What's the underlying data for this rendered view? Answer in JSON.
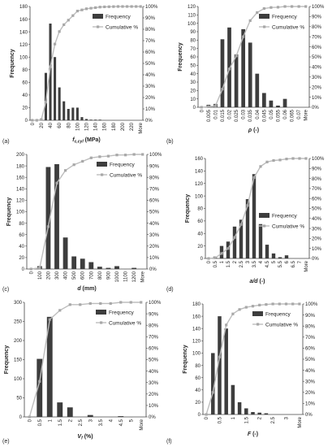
{
  "colors": {
    "bar": "#3d3d3d",
    "line": "#bdbdbd",
    "marker": "#a8a8a8",
    "axis": "#444444"
  },
  "chart_data": [
    {
      "type": "bar",
      "panel": "(a)",
      "xlabel": "f",
      "xlabel_sub": "c,cyl",
      "xlabel_unit": " (MPa)",
      "ylabel": "Frequency",
      "ylim": [
        0,
        180
      ],
      "yticks": [
        0,
        20,
        40,
        60,
        80,
        100,
        120,
        140,
        160,
        180
      ],
      "y2lim": [
        0,
        100
      ],
      "y2ticks": [
        "0%",
        "10%",
        "20%",
        "30%",
        "40%",
        "50%",
        "60%",
        "70%",
        "80%",
        "90%",
        "100%"
      ],
      "categories": [
        "0",
        "10",
        "20",
        "30",
        "40",
        "50",
        "60",
        "70",
        "80",
        "90",
        "100",
        "110",
        "120",
        "130",
        "140",
        "150",
        "160",
        "170",
        "180",
        "190",
        "200",
        "210",
        "220",
        "230",
        "More"
      ],
      "tick_labels": [
        "0",
        "20",
        "40",
        "60",
        "80",
        "100",
        "120",
        "140",
        "160",
        "180",
        "200",
        "220",
        "More"
      ],
      "series": [
        {
          "name": "Frequency",
          "values": [
            0,
            0,
            3,
            75,
            153,
            100,
            52,
            30,
            18,
            20,
            20,
            5,
            2,
            1,
            1,
            1,
            0,
            0,
            0,
            0,
            0,
            0,
            0,
            0,
            0
          ]
        },
        {
          "name": "Cumulative %",
          "values": [
            0,
            0,
            0.6,
            16,
            47,
            67,
            78,
            84,
            88,
            92,
            96,
            97,
            98,
            98.5,
            99,
            99.5,
            99.7,
            99.8,
            99.9,
            100,
            100,
            100,
            100,
            100,
            100
          ]
        }
      ],
      "legend": "top-right"
    },
    {
      "type": "bar",
      "panel": "(b)",
      "xlabel": "ρ",
      "xlabel_sub": "",
      "xlabel_unit": " (-)",
      "ylabel": "Frequency",
      "ylim": [
        0,
        120
      ],
      "yticks": [
        0,
        10,
        20,
        30,
        40,
        50,
        60,
        70,
        80,
        90,
        100,
        110,
        120
      ],
      "y2lim": [
        0,
        100
      ],
      "y2ticks": [
        "0%",
        "10%",
        "20%",
        "30%",
        "40%",
        "50%",
        "60%",
        "70%",
        "80%",
        "90%",
        "100%"
      ],
      "categories": [
        "0",
        "0.005",
        "0.01",
        "0.015",
        "0.02",
        "0.025",
        "0.03",
        "0.035",
        "0.04",
        "0.045",
        "0.05",
        "0.055",
        "0.06",
        "0.065",
        "0.07",
        "More"
      ],
      "tick_labels": [
        "0",
        "0.005",
        "0.01",
        "0.015",
        "0.02",
        "0.025",
        "0.03",
        "0.035",
        "0.04",
        "0.045",
        "0.05",
        "0.055",
        "0.06",
        "0.065",
        "0.07",
        "More"
      ],
      "series": [
        {
          "name": "Frequency",
          "values": [
            0,
            3,
            4,
            81,
            95,
            63,
            93,
            77,
            40,
            17,
            8,
            2,
            10,
            0,
            0,
            0
          ]
        },
        {
          "name": "Cumulative %",
          "values": [
            0,
            0.6,
            1.4,
            18,
            38,
            51,
            70,
            86,
            94,
            98,
            99,
            99.3,
            100,
            100,
            100,
            100
          ]
        }
      ],
      "legend": "top-right"
    },
    {
      "type": "bar",
      "panel": "(c)",
      "xlabel": "d",
      "xlabel_sub": "",
      "xlabel_unit": " (mm)",
      "ylabel": "Frequency",
      "ylim": [
        0,
        200
      ],
      "yticks": [
        0,
        20,
        40,
        60,
        80,
        100,
        120,
        140,
        160,
        180,
        200
      ],
      "y2lim": [
        0,
        100
      ],
      "y2ticks": [
        "0%",
        "10%",
        "20%",
        "30%",
        "40%",
        "50%",
        "60%",
        "70%",
        "80%",
        "90%",
        "100%"
      ],
      "categories": [
        "0",
        "100",
        "200",
        "300",
        "400",
        "500",
        "600",
        "700",
        "800",
        "900",
        "1000",
        "1100",
        "1200",
        "More"
      ],
      "tick_labels": [
        "0",
        "100",
        "200",
        "300",
        "400",
        "500",
        "600",
        "700",
        "800",
        "900",
        "1000",
        "1100",
        "1200",
        "More"
      ],
      "series": [
        {
          "name": "Frequency",
          "values": [
            0,
            5,
            178,
            183,
            55,
            22,
            18,
            12,
            4,
            2,
            5,
            0,
            2,
            0
          ]
        },
        {
          "name": "Cumulative %",
          "values": [
            0,
            1,
            37,
            75,
            86,
            91,
            94,
            97,
            98,
            98.5,
            99.5,
            99.5,
            100,
            100
          ]
        }
      ],
      "legend": "top-right"
    },
    {
      "type": "bar",
      "panel": "(d)",
      "xlabel": "a/d",
      "xlabel_sub": "",
      "xlabel_unit": " (-)",
      "ylabel": "Frequency",
      "ylim": [
        0,
        160
      ],
      "yticks": [
        0,
        20,
        40,
        60,
        80,
        100,
        120,
        140,
        160
      ],
      "y2lim": [
        0,
        100
      ],
      "y2ticks": [
        "0%",
        "10%",
        "20%",
        "30%",
        "40%",
        "50%",
        "60%",
        "70%",
        "80%",
        "90%",
        "100%"
      ],
      "categories": [
        "0",
        "0.5",
        "1",
        "1.5",
        "2",
        "2.5",
        "3",
        "3.5",
        "4",
        "4.5",
        "5",
        "5.5",
        "6",
        "6.5",
        "7",
        "More"
      ],
      "tick_labels": [
        "0",
        "0.5",
        "1",
        "1.5",
        "2",
        "2.5",
        "3",
        "3.5",
        "4",
        "4.5",
        "5",
        "5.5",
        "6",
        "6.5",
        "7",
        "More"
      ],
      "series": [
        {
          "name": "Frequency",
          "values": [
            0,
            3,
            20,
            27,
            51,
            62,
            95,
            135,
            55,
            22,
            8,
            2,
            5,
            0,
            0,
            0
          ]
        },
        {
          "name": "Cumulative %",
          "values": [
            0,
            0.6,
            5,
            10,
            21,
            34,
            53,
            81,
            92,
            96.5,
            98,
            98.5,
            99.5,
            100,
            100,
            100
          ]
        }
      ],
      "legend": "right"
    },
    {
      "type": "bar",
      "panel": "(e)",
      "xlabel": "V",
      "xlabel_sub": "f",
      "xlabel_unit": " (%)",
      "ylabel": "Frequency",
      "ylim": [
        0,
        300
      ],
      "yticks": [
        0,
        50,
        100,
        150,
        200,
        250,
        300
      ],
      "y2lim": [
        0,
        100
      ],
      "y2ticks": [
        "0%",
        "10%",
        "20%",
        "30%",
        "40%",
        "50%",
        "60%",
        "70%",
        "80%",
        "90%",
        "100%"
      ],
      "categories": [
        "0",
        "0.5",
        "1",
        "1.5",
        "2",
        "2.5",
        "3",
        "3.5",
        "4",
        "4.5",
        "5",
        "More"
      ],
      "tick_labels": [
        "0",
        "0.5",
        "1",
        "1.5",
        "2",
        "2.5",
        "3",
        "3.5",
        "4",
        "4.5",
        "5",
        "More"
      ],
      "series": [
        {
          "name": "Frequency",
          "values": [
            0,
            152,
            262,
            38,
            25,
            0,
            5,
            0,
            0,
            2,
            0,
            0
          ]
        },
        {
          "name": "Cumulative %",
          "values": [
            0,
            31,
            85,
            93,
            98,
            98,
            99,
            99,
            99,
            100,
            100,
            100
          ]
        }
      ],
      "legend": "top-right"
    },
    {
      "type": "bar",
      "panel": "(f)",
      "xlabel": "F",
      "xlabel_sub": "",
      "xlabel_unit": " (-)",
      "ylabel": "Frequency",
      "ylim": [
        0,
        180
      ],
      "yticks": [
        0,
        20,
        40,
        60,
        80,
        100,
        120,
        140,
        160,
        180
      ],
      "y2lim": [
        0,
        100
      ],
      "y2ticks": [
        "0%",
        "10%",
        "20%",
        "30%",
        "40%",
        "50%",
        "60%",
        "70%",
        "80%",
        "90%",
        "100%"
      ],
      "categories": [
        "0",
        "0.25",
        "0.5",
        "0.75",
        "1",
        "1.25",
        "1.5",
        "1.75",
        "2",
        "2.25",
        "2.5",
        "2.75",
        "3",
        "3.25",
        "More"
      ],
      "tick_labels": [
        "0",
        "",
        "0.5",
        "",
        "1",
        "",
        "1.5",
        "",
        "2",
        "",
        "2.5",
        "",
        "3",
        "",
        "More"
      ],
      "series": [
        {
          "name": "Frequency",
          "values": [
            0,
            100,
            160,
            140,
            48,
            20,
            10,
            4,
            3,
            2,
            0,
            0,
            0,
            0,
            0
          ]
        },
        {
          "name": "Cumulative %",
          "values": [
            0,
            20,
            52,
            81,
            91,
            95,
            97,
            98,
            99,
            99.5,
            100,
            100,
            100,
            100,
            100
          ]
        }
      ],
      "legend": "top-right"
    }
  ]
}
